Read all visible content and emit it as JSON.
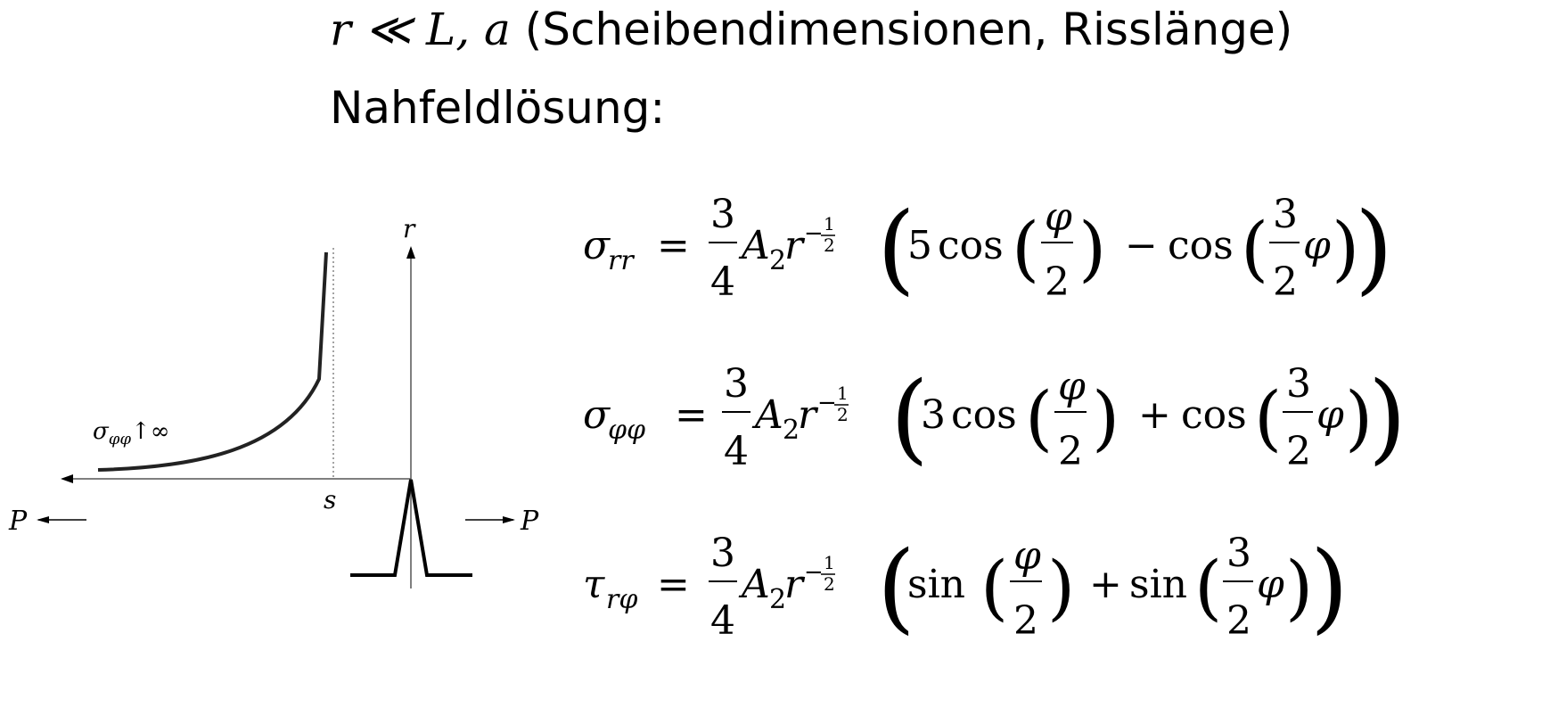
{
  "header": {
    "condition_math": "r ≪ L, a",
    "condition_text": "(Scheibendimensionen, Risslänge)",
    "subtitle": "Nahfeldlösung:"
  },
  "figure": {
    "r_label": "r",
    "s_label": "s",
    "p_left_label": "P",
    "p_right_label": "P",
    "stress_label_sigma": "σ",
    "stress_label_sub": "φφ",
    "stress_label_tail": "↑∞"
  },
  "equations": [
    {
      "lhs_symbol": "σ",
      "lhs_sub": "rr",
      "fraction_num": "3",
      "fraction_den": "4",
      "coef": "A",
      "coef_sub": "2",
      "var": "r",
      "exp_sign": "−",
      "exp_num": "1",
      "exp_den": "2",
      "c1": "5",
      "f1": "cos",
      "arg1_num": "φ",
      "arg1_den": "2",
      "op": "−",
      "f2": "cos",
      "arg2_num": "3",
      "arg2_den": "2",
      "arg2_var": "φ"
    },
    {
      "lhs_symbol": "σ",
      "lhs_sub": "φφ",
      "fraction_num": "3",
      "fraction_den": "4",
      "coef": "A",
      "coef_sub": "2",
      "var": "r",
      "exp_sign": "−",
      "exp_num": "1",
      "exp_den": "2",
      "c1": "3",
      "f1": "cos",
      "arg1_num": "φ",
      "arg1_den": "2",
      "op": "+",
      "f2": "cos",
      "arg2_num": "3",
      "arg2_den": "2",
      "arg2_var": "φ"
    },
    {
      "lhs_symbol": "τ",
      "lhs_sub": "rφ",
      "fraction_num": "3",
      "fraction_den": "4",
      "coef": "A",
      "coef_sub": "2",
      "var": "r",
      "exp_sign": "−",
      "exp_num": "1",
      "exp_den": "2",
      "c1": "",
      "f1": "sin",
      "arg1_num": "φ",
      "arg1_den": "2",
      "op": "+",
      "f2": "sin",
      "arg2_num": "3",
      "arg2_den": "2",
      "arg2_var": "φ"
    }
  ]
}
